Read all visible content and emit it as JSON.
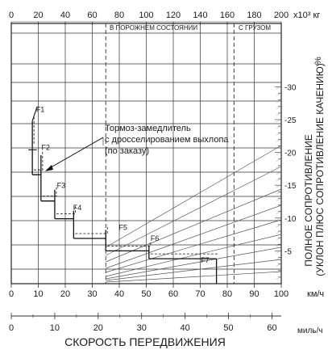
{
  "chart_data": {
    "type": "line",
    "top_scale": {
      "ticks": [
        "0",
        "20",
        "40",
        "60",
        "80",
        "100",
        "120",
        "140",
        "160",
        "180",
        "200"
      ],
      "unit": "x10³ кг"
    },
    "speed_kmh": {
      "ticks": [
        "0",
        "10",
        "20",
        "30",
        "40",
        "50",
        "60",
        "70",
        "80",
        "90",
        "100"
      ],
      "unit": "км/ч",
      "range": [
        0,
        100
      ]
    },
    "speed_mph": {
      "ticks": [
        "0",
        "10",
        "20",
        "30",
        "40",
        "50",
        "60"
      ],
      "unit": "миль/ч",
      "range": [
        0,
        62.14
      ]
    },
    "xlabel": "СКОРОСТЬ ПЕРЕДВИЖЕНИЯ",
    "resistance": {
      "ticks": [
        "-30",
        "-25",
        "-20",
        "-15",
        "-10",
        "-5"
      ],
      "unit": "%",
      "label_line1": "ПОЛНОЕ СОПРОТИВЛЕНИЕ",
      "label_line2": "(УКЛОН ПЛЮС СОПРОТИВЛЕНИЕ КАЧЕНИЮ)",
      "range": [
        0,
        -30
      ]
    },
    "weight_markers": [
      {
        "label": "В ПОРОЖНЕМ СОСТОЯНИИ",
        "kmh": 35
      },
      {
        "label": "С ГРУЗОМ",
        "kmh": 82.5
      }
    ],
    "annotation": {
      "line1": "Тормоз-замедлитель",
      "line2": "с дросселированием выхлопа",
      "line3": "(по заказу)"
    },
    "gears": [
      {
        "name": "F1",
        "x": [
          7.8,
          7.8
        ],
        "y": [
          -20.6,
          -24.8
        ],
        "label_x": 9.2,
        "label_y": -26.2
      },
      {
        "name": "F2",
        "x": [
          7.8,
          11.0,
          11.0
        ],
        "y": [
          -16.6,
          -16.6,
          -19.6
        ],
        "label_x": 11.2,
        "label_y": -20.4
      },
      {
        "name": "F3",
        "x": [
          11.0,
          16.1,
          16.1
        ],
        "y": [
          -12.6,
          -12.6,
          -14.3
        ],
        "label_x": 16.9,
        "label_y": -14.6
      },
      {
        "name": "F4",
        "x": [
          16.1,
          23.1,
          23.1
        ],
        "y": [
          -9.9,
          -9.9,
          -11.1
        ],
        "label_x": 22.9,
        "label_y": -11.2
      },
      {
        "name": "F5",
        "x": [
          23.1,
          35.0,
          35.0
        ],
        "y": [
          -6.9,
          -6.9,
          -8.2
        ],
        "label_x": 39.8,
        "label_y": -8.2
      },
      {
        "name": "F6",
        "x": [
          35.0,
          51.0,
          51.0
        ],
        "y": [
          -5.0,
          -5.0,
          -5.8
        ],
        "label_x": 51.6,
        "label_y": -6.5
      },
      {
        "name": "F7",
        "x": [
          51.0,
          76.0
        ],
        "y": [
          -3.8,
          -3.8
        ],
        "label_x": 70.2,
        "label_y": -3.2
      }
    ]
  }
}
